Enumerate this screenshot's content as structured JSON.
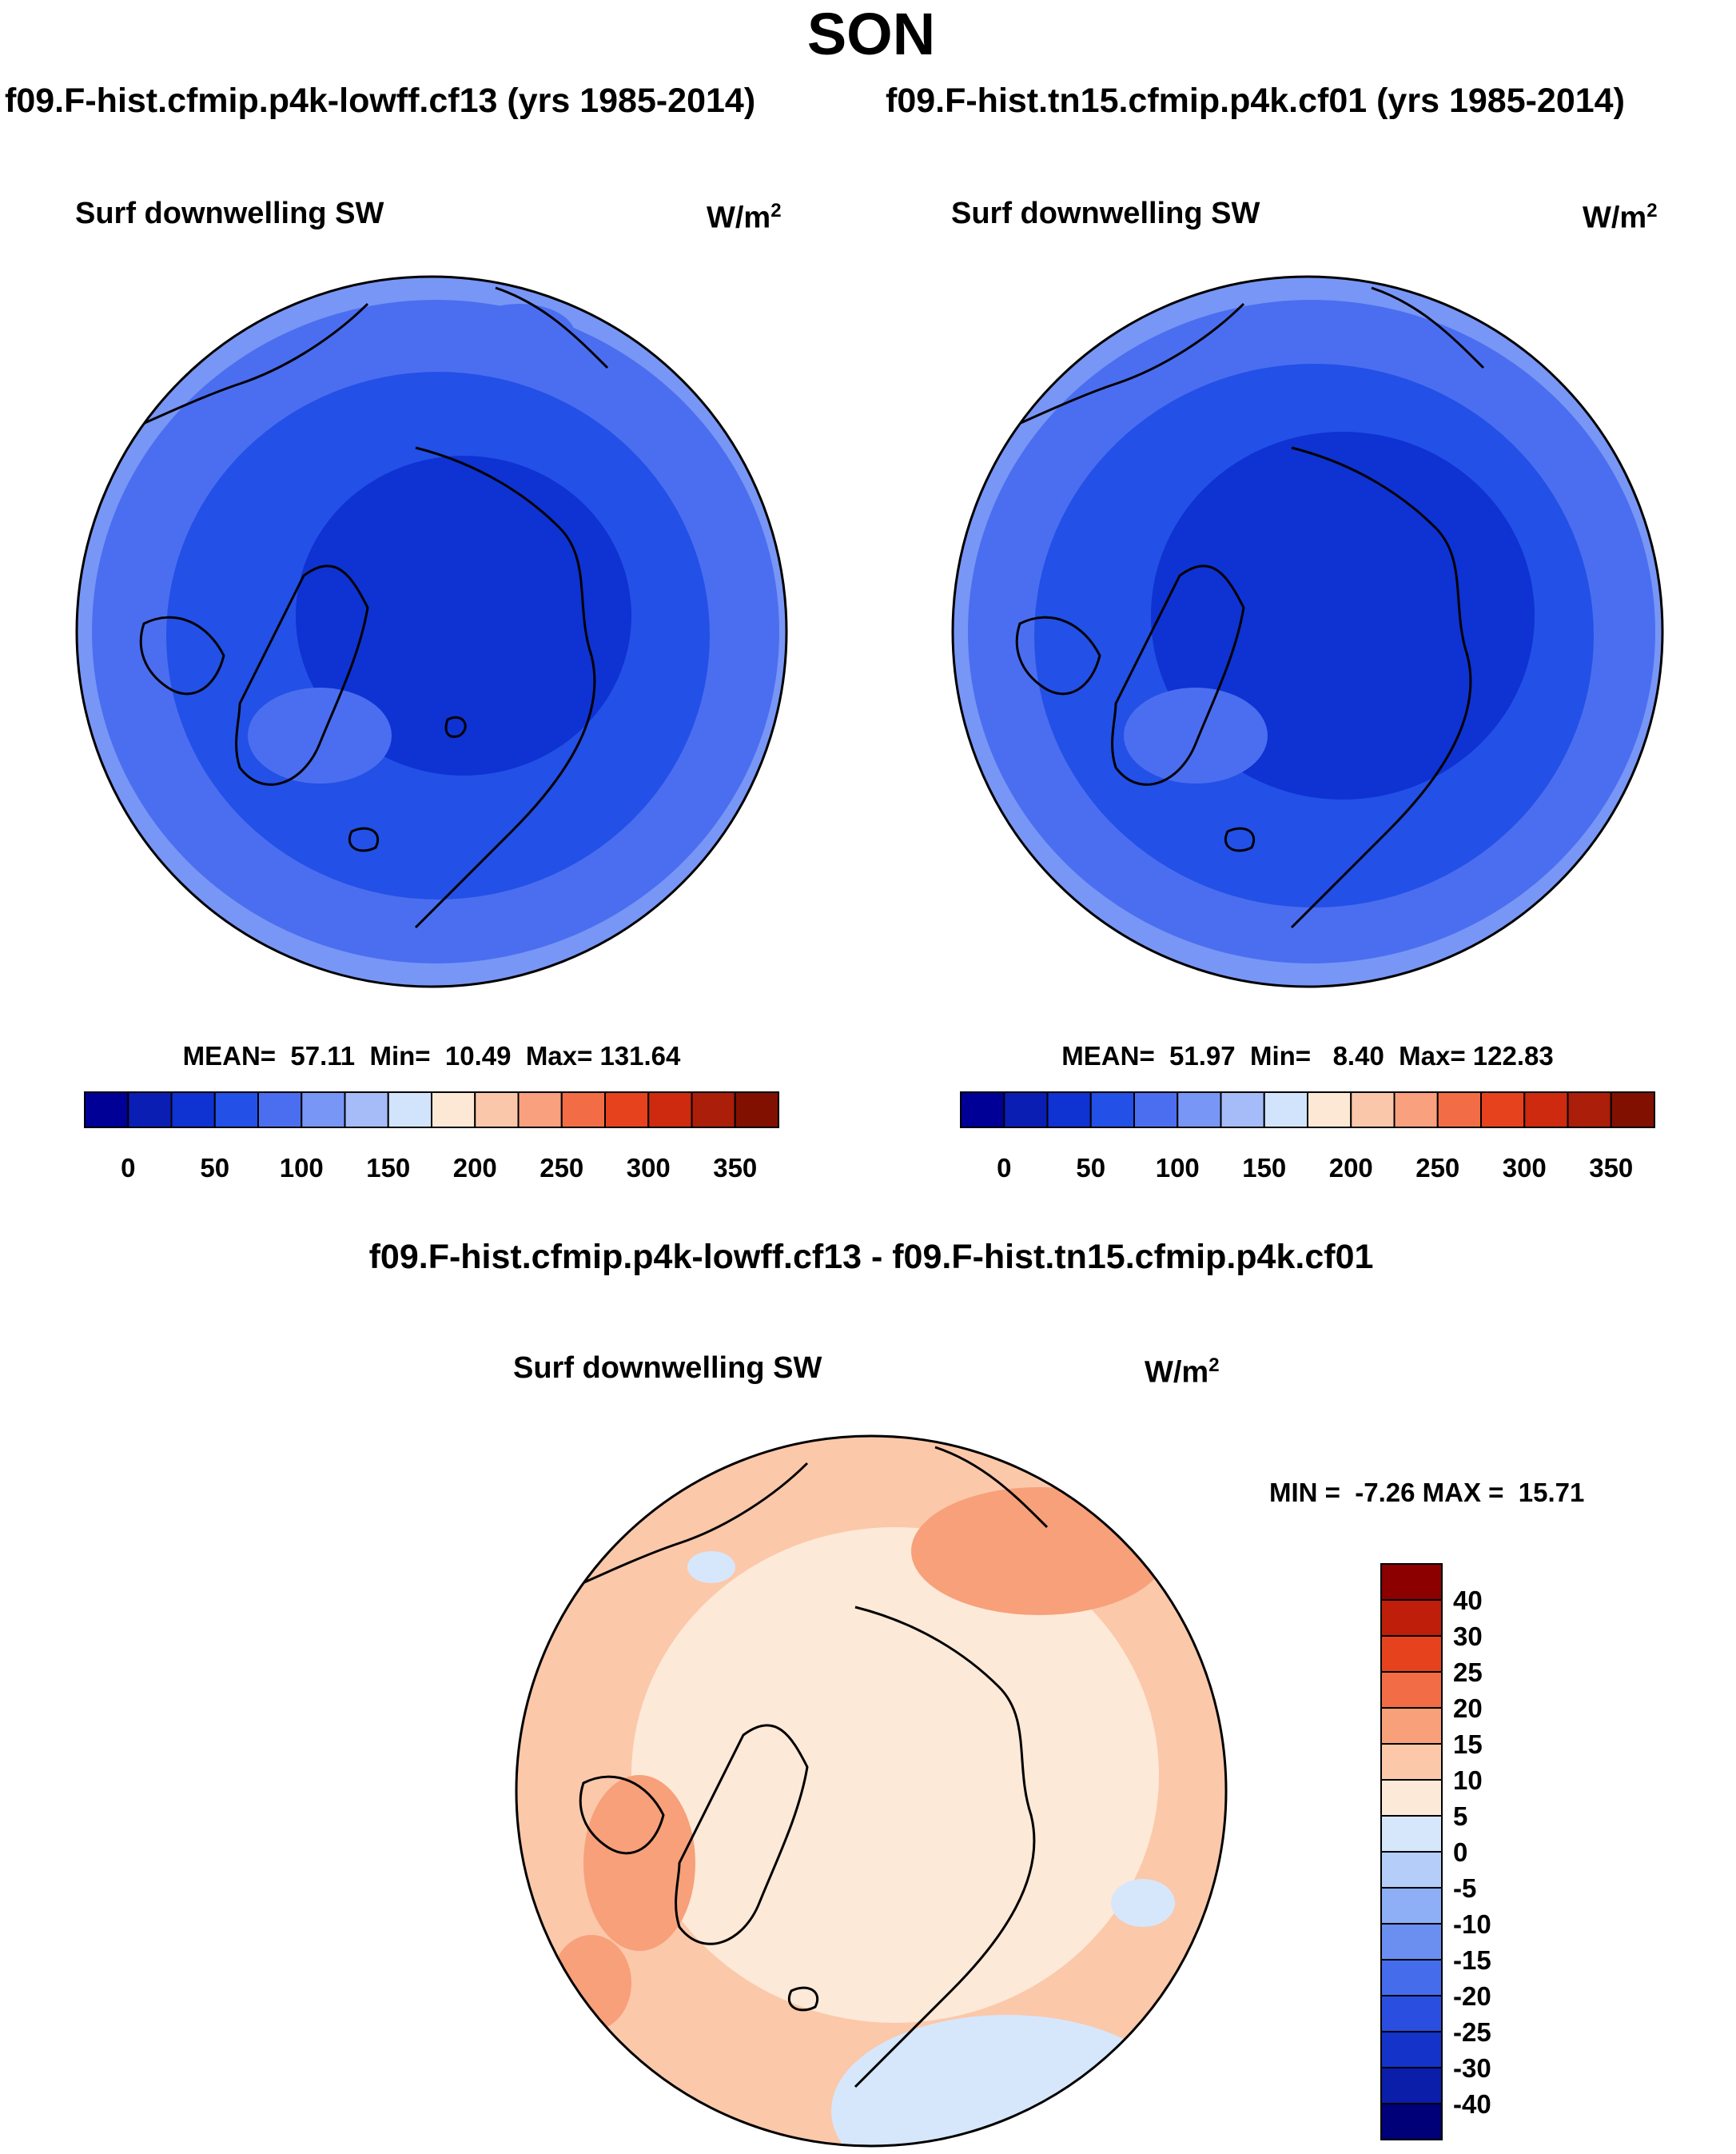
{
  "title": "SON",
  "panels": [
    {
      "header": "f09.F-hist.cfmip.p4k-lowff.cf13 (yrs 1985-2014)",
      "variable": "Surf downwelling SW",
      "units_base": "W/m",
      "units_exp": "2",
      "stats": "MEAN=  57.11  Min=  10.49  Max= 131.64",
      "field": "abs_case1"
    },
    {
      "header": "f09.F-hist.tn15.cfmip.p4k.cf01 (yrs 1985-2014)",
      "variable": "Surf downwelling SW",
      "units_base": "W/m",
      "units_exp": "2",
      "stats": "MEAN=  51.97  Min=   8.40  Max= 122.83",
      "field": "abs_case2"
    }
  ],
  "abs_colorbar": {
    "colors": [
      "#000096",
      "#0a1eb4",
      "#0f32d2",
      "#2350e6",
      "#4b6ef0",
      "#7896f5",
      "#a5bcf8",
      "#d2e4fc",
      "#fde8d6",
      "#fbc7aa",
      "#f9a07e",
      "#f26d45",
      "#e6421e",
      "#cd2a0f",
      "#aa1e0a",
      "#821000"
    ],
    "tick_labels": [
      "0",
      "50",
      "100",
      "150",
      "200",
      "250",
      "300",
      "350"
    ]
  },
  "diff_panel": {
    "header": "f09.F-hist.cfmip.p4k-lowff.cf13 - f09.F-hist.tn15.cfmip.p4k.cf01",
    "variable": "Surf downwelling SW",
    "units_base": "W/m",
    "units_exp": "2",
    "stats": "MIN =  -7.26 MAX =  15.71",
    "field": "diff"
  },
  "diff_colorbar": {
    "colors_top_to_bottom": [
      "#8c0000",
      "#be1e0a",
      "#e6421e",
      "#f26d45",
      "#f7a07a",
      "#fbc8aa",
      "#fde9d7",
      "#d6e7fc",
      "#b5cdf9",
      "#8eaef5",
      "#6b8ff0",
      "#456ceb",
      "#2a4fe0",
      "#1433c8",
      "#0a1eaa",
      "#000078"
    ],
    "tick_labels": [
      "40",
      "30",
      "25",
      "20",
      "15",
      "10",
      "5",
      "0",
      "-5",
      "-10",
      "-15",
      "-20",
      "-25",
      "-30",
      "-40"
    ]
  }
}
